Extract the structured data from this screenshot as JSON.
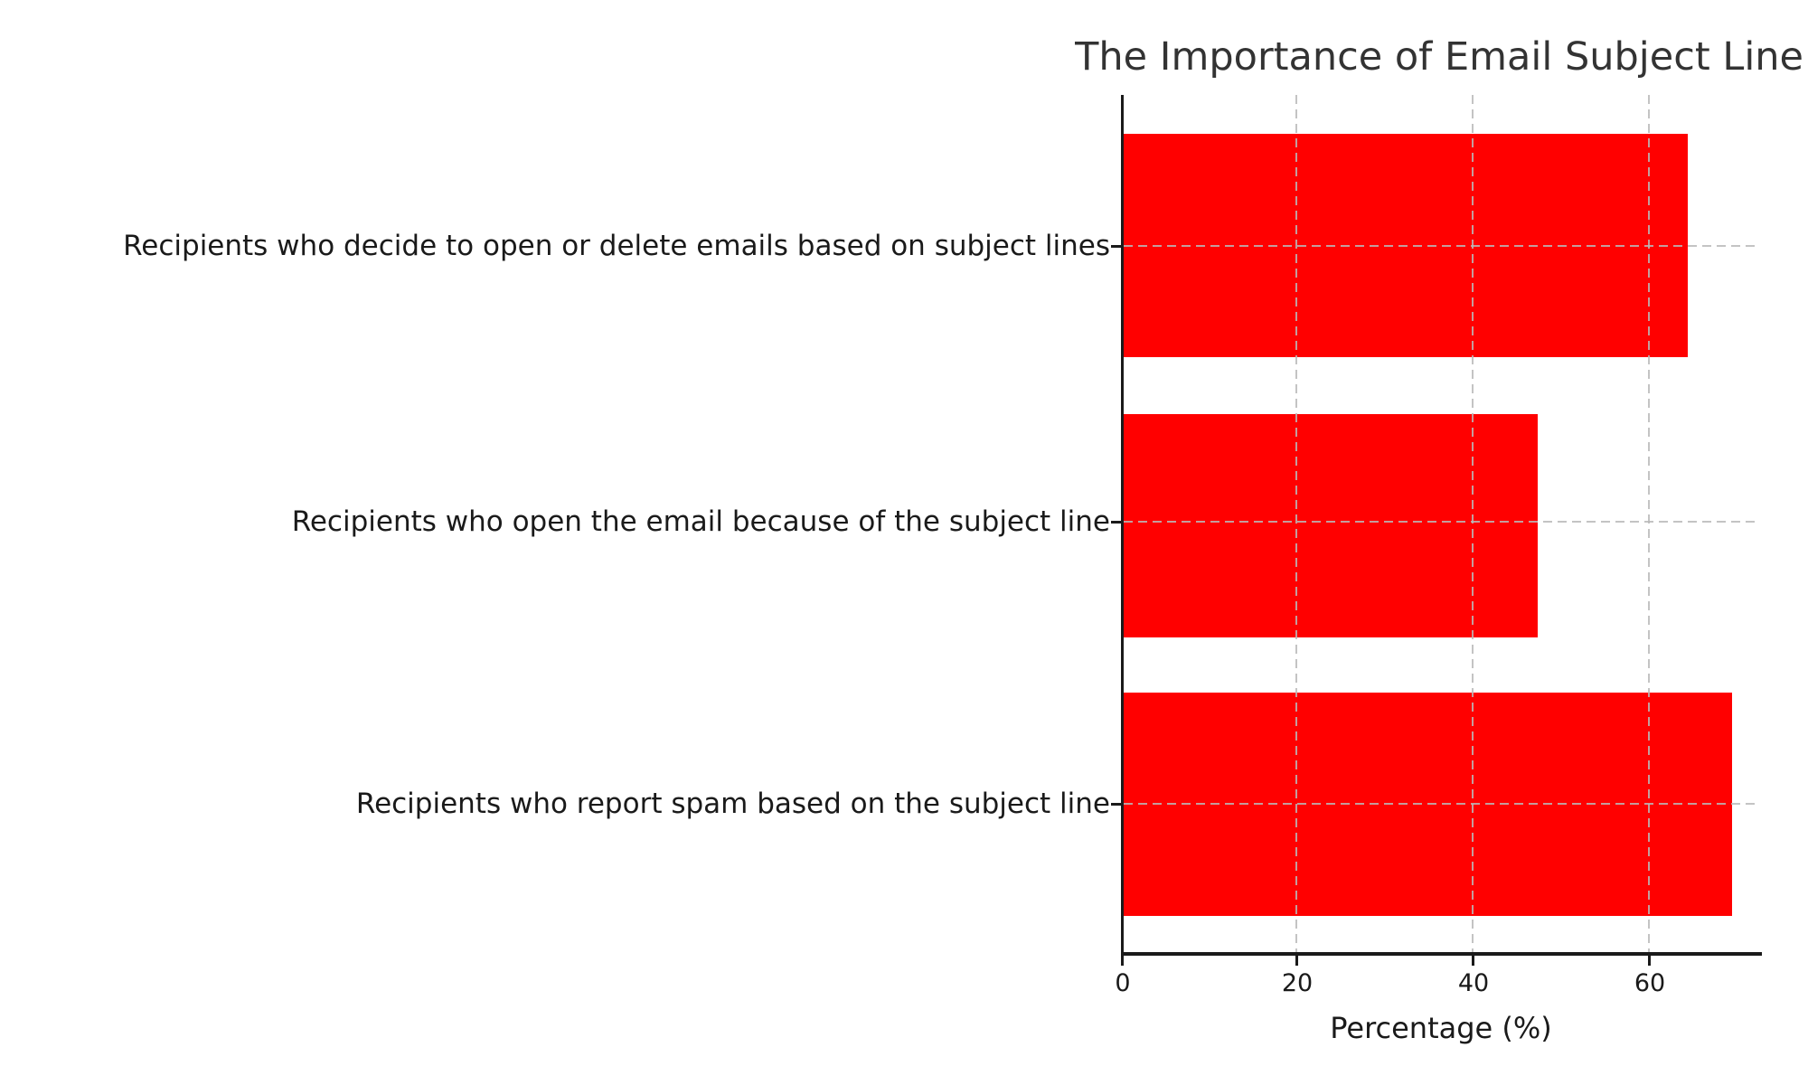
{
  "chart_data": {
    "type": "bar",
    "orientation": "horizontal",
    "title": "The Importance of Email Subject Line",
    "categories": [
      "Recipients who decide to open or delete emails based on subject lines",
      "Recipients who open the email because of the subject line",
      "Recipients who report spam based on the subject line"
    ],
    "values": [
      64,
      47,
      69
    ],
    "xlabel": "Percentage (%)",
    "x_ticks": [
      "0",
      "20",
      "40",
      "60"
    ],
    "xlim": [
      0,
      72
    ],
    "bar_color": "#ff0000",
    "grid": "dashed",
    "grid_color": "#b9b9b9",
    "text_color": "#262626",
    "background": "#ffffff",
    "legend": "none"
  }
}
